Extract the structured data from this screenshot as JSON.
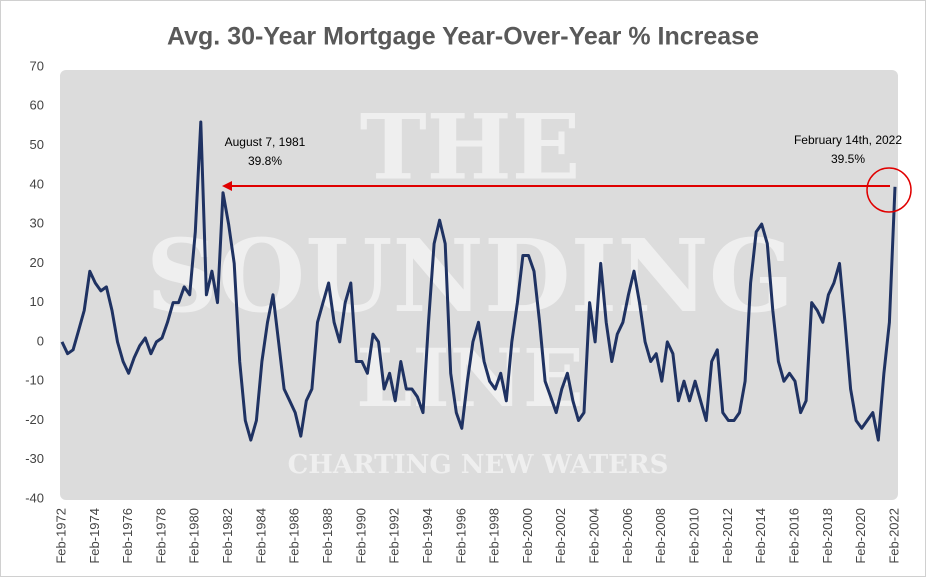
{
  "chart_data": {
    "type": "line",
    "title": "Avg. 30-Year Mortgage Year-Over-Year % Increase",
    "color": "#1f3262",
    "categories": [
      "Feb-1972",
      null,
      null,
      null,
      null,
      null,
      "Feb-1974",
      null,
      null,
      null,
      null,
      null,
      "Feb-1976",
      null,
      null,
      null,
      null,
      null,
      "Feb-1978",
      null,
      null,
      null,
      null,
      null,
      "Feb-1980",
      null,
      null,
      null,
      null,
      null,
      "Feb-1982",
      null,
      null,
      null,
      null,
      null,
      "Feb-1984",
      null,
      null,
      null,
      null,
      null,
      "Feb-1986",
      null,
      null,
      null,
      null,
      null,
      "Feb-1988",
      null,
      null,
      null,
      null,
      null,
      "Feb-1990",
      null,
      null,
      null,
      null,
      null,
      "Feb-1992",
      null,
      null,
      null,
      null,
      null,
      "Feb-1994",
      null,
      null,
      null,
      null,
      null,
      "Feb-1996",
      null,
      null,
      null,
      null,
      null,
      "Feb-1998",
      null,
      null,
      null,
      null,
      null,
      "Feb-2000",
      null,
      null,
      null,
      null,
      null,
      "Feb-2002",
      null,
      null,
      null,
      null,
      null,
      "Feb-2004",
      null,
      null,
      null,
      null,
      null,
      "Feb-2006",
      null,
      null,
      null,
      null,
      null,
      "Feb-2008",
      null,
      null,
      null,
      null,
      null,
      "Feb-2010",
      null,
      null,
      null,
      null,
      null,
      "Feb-2012",
      null,
      null,
      null,
      null,
      null,
      "Feb-2014",
      null,
      null,
      null,
      null,
      null,
      "Feb-2016",
      null,
      null,
      null,
      null,
      null,
      "Feb-2018",
      null,
      null,
      null,
      null,
      null,
      "Feb-2020",
      null,
      null,
      null,
      null,
      null,
      "Feb-2022"
    ],
    "values": [
      0,
      -3,
      -2,
      3,
      8,
      18,
      15,
      13,
      14,
      8,
      0,
      -5,
      -8,
      -4,
      -1,
      1,
      -3,
      0,
      1,
      5,
      10,
      10,
      14,
      12,
      28,
      56,
      12,
      18,
      10,
      38,
      30,
      20,
      -5,
      -20,
      -25,
      -20,
      -5,
      5,
      12,
      0,
      -12,
      -15,
      -18,
      -24,
      -15,
      -12,
      5,
      10,
      15,
      5,
      0,
      10,
      15,
      -5,
      -5,
      -8,
      2,
      0,
      -12,
      -8,
      -15,
      -5,
      -12,
      -12,
      -14,
      -18,
      5,
      25,
      31,
      25,
      -8,
      -18,
      -22,
      -10,
      0,
      5,
      -5,
      -10,
      -12,
      -8,
      -15,
      0,
      10,
      22,
      22,
      18,
      5,
      -10,
      -14,
      -18,
      -12,
      -8,
      -15,
      -20,
      -18,
      10,
      0,
      20,
      5,
      -5,
      2,
      5,
      12,
      18,
      10,
      0,
      -5,
      -3,
      -10,
      0,
      -3,
      -15,
      -10,
      -15,
      -10,
      -15,
      -20,
      -5,
      -2,
      -18,
      -20,
      -20,
      -18,
      -10,
      15,
      28,
      30,
      25,
      8,
      -5,
      -10,
      -8,
      -10,
      -18,
      -15,
      10,
      8,
      5,
      12,
      15,
      20,
      5,
      -12,
      -20,
      -22,
      -20,
      -18,
      -25,
      -8,
      5,
      39.5
    ],
    "ylim": [
      -40,
      70
    ],
    "yticks": [
      -40,
      -30,
      -20,
      -10,
      0,
      10,
      20,
      30,
      40,
      50,
      60,
      70
    ],
    "annotations": [
      {
        "lines": [
          "August 7, 1981",
          "39.8%"
        ]
      },
      {
        "lines": [
          "February 14th, 2022",
          "39.5%"
        ]
      }
    ],
    "watermark": [
      "THE",
      "SOUNDING",
      "LINE",
      "CHARTING NEW WATERS"
    ]
  }
}
